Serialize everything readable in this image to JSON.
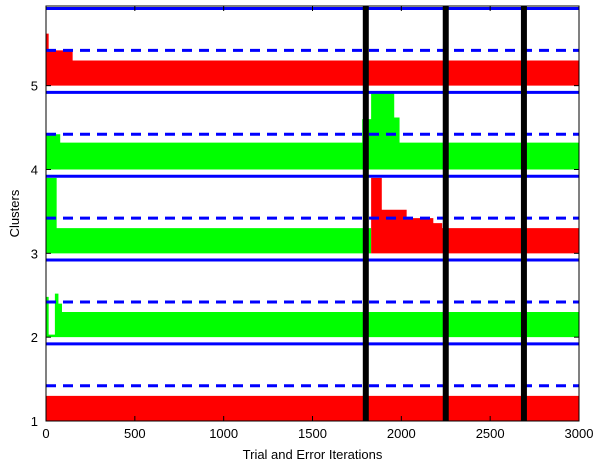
{
  "chart_data": {
    "type": "area",
    "title": "",
    "xlabel": "Trial and Error Iterations",
    "ylabel": "Clusters",
    "xlim": [
      0,
      3000
    ],
    "ylim": [
      1,
      5.95
    ],
    "xticks": [
      0,
      500,
      1000,
      1500,
      2000,
      2500,
      3000
    ],
    "yticks": [
      1,
      2,
      3,
      4,
      5
    ],
    "grid": false,
    "colors": {
      "red": "#ff0000",
      "green": "#00ff00",
      "solid_line": "#0000ff",
      "dashed_line": "#0000ff",
      "marker": "#000000"
    },
    "cluster_boundaries_solid": [
      1.92,
      2.92,
      3.92,
      4.92,
      5.92
    ],
    "cluster_centers_dashed": [
      1.42,
      2.42,
      3.42,
      4.42,
      5.42
    ],
    "vertical_markers_x": [
      1800,
      2250,
      2690
    ],
    "bands": [
      {
        "cluster": 1,
        "color": "red",
        "points": [
          [
            0,
            1.3
          ],
          [
            3000,
            1.3
          ]
        ]
      },
      {
        "cluster": 2,
        "color": "green",
        "points": [
          [
            0,
            2.48
          ],
          [
            15,
            2.48
          ],
          [
            15,
            2.03
          ],
          [
            50,
            2.03
          ],
          [
            50,
            2.52
          ],
          [
            70,
            2.52
          ],
          [
            70,
            2.4
          ],
          [
            90,
            2.4
          ],
          [
            90,
            2.3
          ],
          [
            3000,
            2.3
          ]
        ]
      },
      {
        "cluster": 3,
        "color": "green",
        "points": [
          [
            0,
            3.9
          ],
          [
            60,
            3.9
          ],
          [
            60,
            3.3
          ],
          [
            1830,
            3.3
          ],
          [
            1830,
            3.0
          ],
          [
            3000,
            3.0
          ]
        ]
      },
      {
        "cluster": 3,
        "color": "red",
        "points": [
          [
            1830,
            3.9
          ],
          [
            1890,
            3.9
          ],
          [
            1890,
            3.52
          ],
          [
            2030,
            3.52
          ],
          [
            2030,
            3.42
          ],
          [
            2180,
            3.42
          ],
          [
            2180,
            3.36
          ],
          [
            2230,
            3.36
          ],
          [
            2230,
            3.3
          ],
          [
            3000,
            3.3
          ]
        ]
      },
      {
        "cluster": 4,
        "color": "green",
        "points": [
          [
            0,
            4.42
          ],
          [
            80,
            4.42
          ],
          [
            80,
            4.32
          ],
          [
            1780,
            4.32
          ],
          [
            1780,
            4.6
          ],
          [
            1830,
            4.6
          ],
          [
            1830,
            4.92
          ],
          [
            1960,
            4.92
          ],
          [
            1960,
            4.62
          ],
          [
            1990,
            4.62
          ],
          [
            1990,
            4.32
          ],
          [
            3000,
            4.32
          ]
        ]
      },
      {
        "cluster": 5,
        "color": "red",
        "points": [
          [
            0,
            5.62
          ],
          [
            15,
            5.62
          ],
          [
            15,
            5.42
          ],
          [
            150,
            5.42
          ],
          [
            150,
            5.3
          ],
          [
            3000,
            5.3
          ]
        ]
      }
    ]
  }
}
